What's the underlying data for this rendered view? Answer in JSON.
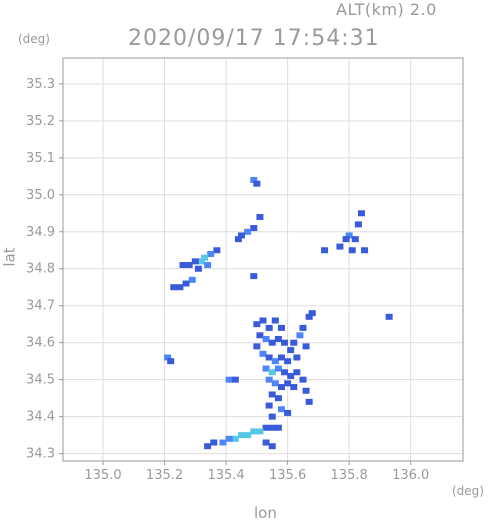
{
  "header": {
    "alt_label": "ALT(km)  2.0",
    "timestamp": "2020/09/17 17:54:31",
    "y_unit": "(deg)",
    "x_unit": "(deg)"
  },
  "chart_data": {
    "type": "heatmap",
    "xlabel": "lon",
    "ylabel": "lat",
    "xlim": [
      134.87,
      136.17
    ],
    "ylim": [
      34.28,
      35.37
    ],
    "grid": true,
    "x_ticks": [
      "135.0",
      "135.2",
      "135.4",
      "135.6",
      "135.8",
      "136.0"
    ],
    "x_tick_values": [
      135.0,
      135.2,
      135.4,
      135.6,
      135.8,
      136.0
    ],
    "y_ticks": [
      "34.3",
      "34.4",
      "34.5",
      "34.6",
      "34.7",
      "34.8",
      "34.9",
      "35.0",
      "35.1",
      "35.2",
      "35.3"
    ],
    "y_tick_values": [
      34.3,
      34.4,
      34.5,
      34.6,
      34.7,
      34.8,
      34.9,
      35.0,
      35.1,
      35.2,
      35.3
    ],
    "colors": {
      "low": "#3a5bd9",
      "mid": "#4f86f7",
      "high": "#56c8e6",
      "grid": "#dddddd",
      "axis": "#9a9a9a"
    },
    "echo_cells": [
      {
        "lon": 135.49,
        "lat": 35.04,
        "level": "mid"
      },
      {
        "lon": 135.5,
        "lat": 35.03,
        "level": "low"
      },
      {
        "lon": 135.51,
        "lat": 34.94,
        "level": "low"
      },
      {
        "lon": 135.49,
        "lat": 34.91,
        "level": "low"
      },
      {
        "lon": 135.47,
        "lat": 34.9,
        "level": "mid"
      },
      {
        "lon": 135.45,
        "lat": 34.89,
        "level": "low"
      },
      {
        "lon": 135.44,
        "lat": 34.88,
        "level": "low"
      },
      {
        "lon": 135.37,
        "lat": 34.85,
        "level": "low"
      },
      {
        "lon": 135.35,
        "lat": 34.84,
        "level": "mid"
      },
      {
        "lon": 135.33,
        "lat": 34.83,
        "level": "high"
      },
      {
        "lon": 135.32,
        "lat": 34.82,
        "level": "high"
      },
      {
        "lon": 135.34,
        "lat": 34.81,
        "level": "mid"
      },
      {
        "lon": 135.3,
        "lat": 34.82,
        "level": "low"
      },
      {
        "lon": 135.28,
        "lat": 34.81,
        "level": "low"
      },
      {
        "lon": 135.26,
        "lat": 34.81,
        "level": "low"
      },
      {
        "lon": 135.31,
        "lat": 34.8,
        "level": "low"
      },
      {
        "lon": 135.29,
        "lat": 34.77,
        "level": "mid"
      },
      {
        "lon": 135.27,
        "lat": 34.76,
        "level": "low"
      },
      {
        "lon": 135.25,
        "lat": 34.75,
        "level": "low"
      },
      {
        "lon": 135.23,
        "lat": 34.75,
        "level": "low"
      },
      {
        "lon": 135.21,
        "lat": 34.56,
        "level": "mid"
      },
      {
        "lon": 135.22,
        "lat": 34.55,
        "level": "low"
      },
      {
        "lon": 135.41,
        "lat": 34.5,
        "level": "mid"
      },
      {
        "lon": 135.43,
        "lat": 34.5,
        "level": "low"
      },
      {
        "lon": 135.49,
        "lat": 34.78,
        "level": "low"
      },
      {
        "lon": 135.84,
        "lat": 34.95,
        "level": "low"
      },
      {
        "lon": 135.83,
        "lat": 34.92,
        "level": "low"
      },
      {
        "lon": 135.8,
        "lat": 34.89,
        "level": "mid"
      },
      {
        "lon": 135.79,
        "lat": 34.88,
        "level": "low"
      },
      {
        "lon": 135.82,
        "lat": 34.88,
        "level": "low"
      },
      {
        "lon": 135.77,
        "lat": 34.86,
        "level": "low"
      },
      {
        "lon": 135.81,
        "lat": 34.85,
        "level": "low"
      },
      {
        "lon": 135.85,
        "lat": 34.85,
        "level": "low"
      },
      {
        "lon": 135.72,
        "lat": 34.85,
        "level": "low"
      },
      {
        "lon": 135.93,
        "lat": 34.67,
        "level": "low"
      },
      {
        "lon": 135.68,
        "lat": 34.68,
        "level": "low"
      },
      {
        "lon": 135.67,
        "lat": 34.67,
        "level": "low"
      },
      {
        "lon": 135.65,
        "lat": 34.64,
        "level": "low"
      },
      {
        "lon": 135.64,
        "lat": 34.62,
        "level": "mid"
      },
      {
        "lon": 135.62,
        "lat": 34.6,
        "level": "low"
      },
      {
        "lon": 135.66,
        "lat": 34.59,
        "level": "low"
      },
      {
        "lon": 135.52,
        "lat": 34.66,
        "level": "low"
      },
      {
        "lon": 135.5,
        "lat": 34.65,
        "level": "low"
      },
      {
        "lon": 135.54,
        "lat": 34.64,
        "level": "low"
      },
      {
        "lon": 135.56,
        "lat": 34.66,
        "level": "low"
      },
      {
        "lon": 135.58,
        "lat": 34.64,
        "level": "low"
      },
      {
        "lon": 135.51,
        "lat": 34.62,
        "level": "low"
      },
      {
        "lon": 135.53,
        "lat": 34.61,
        "level": "mid"
      },
      {
        "lon": 135.55,
        "lat": 34.6,
        "level": "low"
      },
      {
        "lon": 135.57,
        "lat": 34.61,
        "level": "low"
      },
      {
        "lon": 135.59,
        "lat": 34.6,
        "level": "low"
      },
      {
        "lon": 135.61,
        "lat": 34.58,
        "level": "low"
      },
      {
        "lon": 135.5,
        "lat": 34.59,
        "level": "low"
      },
      {
        "lon": 135.52,
        "lat": 34.57,
        "level": "mid"
      },
      {
        "lon": 135.54,
        "lat": 34.56,
        "level": "low"
      },
      {
        "lon": 135.56,
        "lat": 34.55,
        "level": "mid"
      },
      {
        "lon": 135.58,
        "lat": 34.56,
        "level": "low"
      },
      {
        "lon": 135.6,
        "lat": 34.55,
        "level": "low"
      },
      {
        "lon": 135.63,
        "lat": 34.56,
        "level": "low"
      },
      {
        "lon": 135.53,
        "lat": 34.53,
        "level": "mid"
      },
      {
        "lon": 135.55,
        "lat": 34.52,
        "level": "high"
      },
      {
        "lon": 135.57,
        "lat": 34.53,
        "level": "mid"
      },
      {
        "lon": 135.59,
        "lat": 34.52,
        "level": "low"
      },
      {
        "lon": 135.61,
        "lat": 34.51,
        "level": "low"
      },
      {
        "lon": 135.63,
        "lat": 34.52,
        "level": "low"
      },
      {
        "lon": 135.65,
        "lat": 34.5,
        "level": "low"
      },
      {
        "lon": 135.54,
        "lat": 34.5,
        "level": "mid"
      },
      {
        "lon": 135.56,
        "lat": 34.49,
        "level": "mid"
      },
      {
        "lon": 135.58,
        "lat": 34.48,
        "level": "low"
      },
      {
        "lon": 135.6,
        "lat": 34.49,
        "level": "low"
      },
      {
        "lon": 135.62,
        "lat": 34.48,
        "level": "low"
      },
      {
        "lon": 135.66,
        "lat": 34.47,
        "level": "low"
      },
      {
        "lon": 135.55,
        "lat": 34.46,
        "level": "low"
      },
      {
        "lon": 135.57,
        "lat": 34.45,
        "level": "low"
      },
      {
        "lon": 135.67,
        "lat": 34.44,
        "level": "low"
      },
      {
        "lon": 135.54,
        "lat": 34.43,
        "level": "low"
      },
      {
        "lon": 135.58,
        "lat": 34.42,
        "level": "mid"
      },
      {
        "lon": 135.6,
        "lat": 34.41,
        "level": "low"
      },
      {
        "lon": 135.55,
        "lat": 34.4,
        "level": "low"
      },
      {
        "lon": 135.57,
        "lat": 34.37,
        "level": "low"
      },
      {
        "lon": 135.55,
        "lat": 34.37,
        "level": "low"
      },
      {
        "lon": 135.53,
        "lat": 34.37,
        "level": "low"
      },
      {
        "lon": 135.51,
        "lat": 34.36,
        "level": "high"
      },
      {
        "lon": 135.49,
        "lat": 34.36,
        "level": "high"
      },
      {
        "lon": 135.47,
        "lat": 34.35,
        "level": "high"
      },
      {
        "lon": 135.45,
        "lat": 34.35,
        "level": "high"
      },
      {
        "lon": 135.43,
        "lat": 34.34,
        "level": "high"
      },
      {
        "lon": 135.41,
        "lat": 34.34,
        "level": "mid"
      },
      {
        "lon": 135.39,
        "lat": 34.33,
        "level": "mid"
      },
      {
        "lon": 135.36,
        "lat": 34.33,
        "level": "low"
      },
      {
        "lon": 135.34,
        "lat": 34.32,
        "level": "low"
      },
      {
        "lon": 135.53,
        "lat": 34.33,
        "level": "low"
      },
      {
        "lon": 135.55,
        "lat": 34.32,
        "level": "low"
      }
    ]
  }
}
